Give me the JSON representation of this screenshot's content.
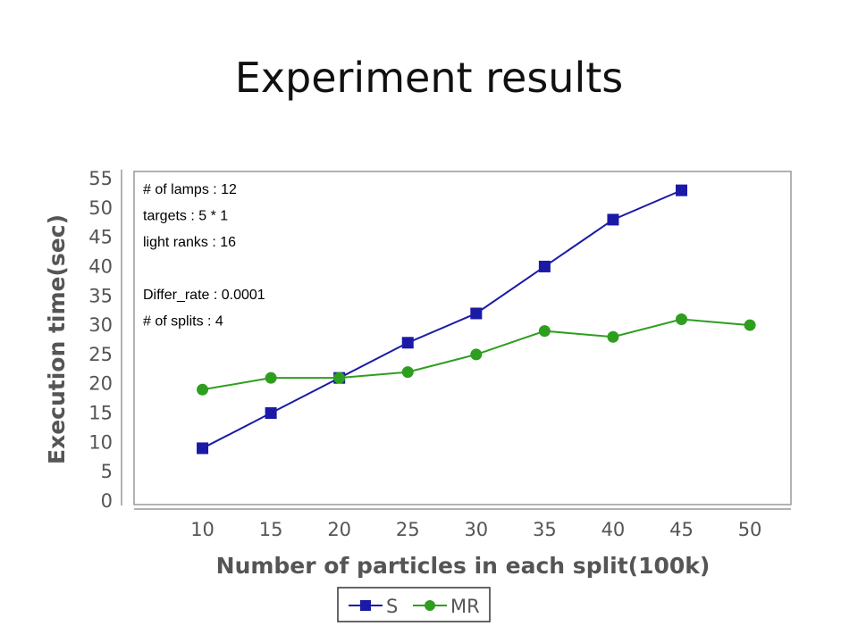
{
  "slide": {
    "title": "Experiment results"
  },
  "chart_data": {
    "type": "line",
    "x": [
      10,
      15,
      20,
      25,
      30,
      35,
      40,
      45,
      50
    ],
    "x_ticks": [
      "10",
      "15",
      "20",
      "25",
      "30",
      "35",
      "40",
      "45",
      "50"
    ],
    "y_ticks": [
      "0",
      "5",
      "10",
      "15",
      "20",
      "25",
      "30",
      "35",
      "40",
      "45",
      "50",
      "55"
    ],
    "xlabel": "Number of particles in each split(100k)",
    "ylabel": "Execution time(sec)",
    "xlim": [
      5,
      53
    ],
    "ylim": [
      0,
      55
    ],
    "grid": false,
    "legend_position": "bottom",
    "series": [
      {
        "name": "S",
        "color": "#1a1aa6",
        "marker": "square",
        "values": [
          9,
          15,
          21,
          27,
          32,
          40,
          48,
          53,
          null
        ]
      },
      {
        "name": "MR",
        "color": "#2e9e1e",
        "marker": "circle",
        "values": [
          19,
          21,
          21,
          22,
          25,
          29,
          28,
          31,
          30
        ]
      }
    ],
    "annotations": [
      "# of lamps : 12",
      "targets : 5 * 1",
      "light ranks : 16",
      "",
      "Differ_rate : 0.0001",
      "# of splits : 4"
    ]
  }
}
